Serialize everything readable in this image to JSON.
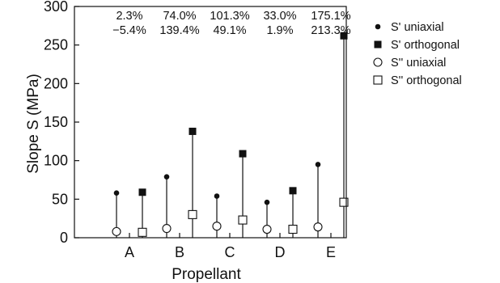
{
  "chart_data": {
    "type": "scatter",
    "title": "",
    "xlabel": "Propellant",
    "ylabel": "Slope S (MPa)",
    "categories": [
      "A",
      "B",
      "C",
      "D",
      "E"
    ],
    "ylim": [
      0,
      300
    ],
    "yticks": [
      0,
      50,
      100,
      150,
      200,
      250,
      300
    ],
    "grid": false,
    "legend_position": "right",
    "series": [
      {
        "name": "S' uniaxial",
        "marker": "filled-circle",
        "values": [
          58,
          79,
          54,
          46,
          95
        ]
      },
      {
        "name": "S' orthogonal",
        "marker": "filled-square",
        "values": [
          59,
          138,
          109,
          61,
          262
        ]
      },
      {
        "name": "S'' uniaxial",
        "marker": "open-circle",
        "values": [
          8,
          12,
          15,
          11,
          14
        ]
      },
      {
        "name": "S'' orthogonal",
        "marker": "open-square",
        "values": [
          7,
          30,
          23,
          11,
          46
        ]
      }
    ],
    "annotations": {
      "row1": [
        "2.3%",
        "74.0%",
        "101.3%",
        "33.0%",
        "175.1%"
      ],
      "row2": [
        "−5.4%",
        "139.4%",
        "49.1%",
        "1.9%",
        "213.3%"
      ]
    }
  }
}
